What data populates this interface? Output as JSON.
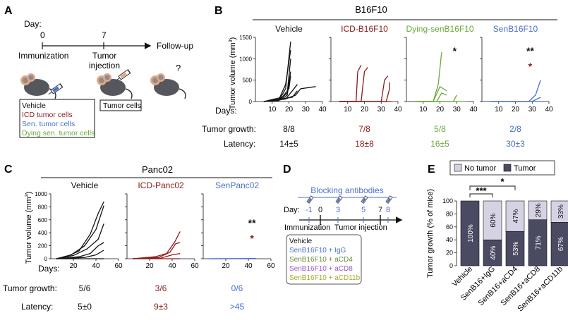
{
  "panels": {
    "A": {
      "letter": "A",
      "day_label": "Day:",
      "ticks": [
        "0",
        "7"
      ],
      "follow_up": "Follow-up",
      "immunization": "Immunization",
      "tumor_injection_1": "Tumor",
      "tumor_injection_2": "injection",
      "tumor_cells_box": "Tumor cells",
      "question": "?",
      "legend": [
        {
          "text": "Vehicle",
          "color": "#111111"
        },
        {
          "text": "ICD tumor cells",
          "color": "#8b1a1a"
        },
        {
          "text": "Sen. tumor cells",
          "color": "#4a6fd0"
        },
        {
          "text": "Dying sen. tumor cells",
          "color": "#6aaa3a"
        }
      ]
    },
    "B": {
      "letter": "B",
      "header": "B16F10",
      "ylabel": "Tumor volume (mm",
      "ylabel_sup": "3",
      "ylabel_end": ")",
      "days_label": "Days:",
      "growth_label": "Tumor growth:",
      "latency_label": "Latency:",
      "groups": [
        {
          "title": "Vehicle",
          "color": "#111111",
          "growth": "8/8",
          "latency": "14±5",
          "stars": []
        },
        {
          "title": "ICD-B16F10",
          "color": "#8b1a1a",
          "growth": "7/8",
          "latency": "18±8",
          "stars": []
        },
        {
          "title": "Dying-senB16F10",
          "color": "#6aaa3a",
          "growth": "5/8",
          "latency": "16±5",
          "stars": [
            {
              "text": "*",
              "color": "#111111"
            }
          ]
        },
        {
          "title": "SenB16F10",
          "color": "#4a6fd0",
          "growth": "2/8",
          "latency": "30±3",
          "stars": [
            {
              "text": "**",
              "color": "#111111"
            },
            {
              "text": "*",
              "color": "#8b1a1a"
            }
          ]
        }
      ]
    },
    "C": {
      "letter": "C",
      "header": "Panc02",
      "ylabel": "Tumor volume (mm",
      "ylabel_sup": "3",
      "ylabel_end": ")",
      "days_label": "Days:",
      "growth_label": "Tumor growth:",
      "latency_label": "Latency:",
      "groups": [
        {
          "title": "Vehicle",
          "color": "#111111",
          "growth": "5/6",
          "latency": "5±0",
          "stars": []
        },
        {
          "title": "ICD-Panc02",
          "color": "#8b1a1a",
          "growth": "3/6",
          "latency": "9±3",
          "stars": []
        },
        {
          "title": "SenPanc02",
          "color": "#4a6fd0",
          "growth": "0/6",
          "latency": ">45",
          "stars": [
            {
              "text": "**",
              "color": "#111111"
            },
            {
              "text": "*",
              "color": "#8b1a1a"
            }
          ]
        }
      ]
    },
    "D": {
      "letter": "D",
      "header": "Blocking antibodies",
      "day_label": "Day:",
      "ticks": [
        {
          "text": "-1",
          "color": "#4a6fd0"
        },
        {
          "text": "0",
          "color": "#111111"
        },
        {
          "text": "3",
          "color": "#4a6fd0"
        },
        {
          "text": "5",
          "color": "#4a6fd0"
        },
        {
          "text": "7",
          "color": "#111111"
        },
        {
          "text": "8",
          "color": "#4a6fd0"
        }
      ],
      "immunization": "Immunization",
      "tumor_injection": "Tumor injection",
      "legend": [
        {
          "text": "Vehicle",
          "color": "#111111"
        },
        {
          "text": "SenB16F10 + IgG",
          "color": "#4a6fd0"
        },
        {
          "text": "SenB16F10 + aCD4",
          "color": "#6a8a3a"
        },
        {
          "text": "SenB16F10 + aCD8",
          "color": "#9a5ac8"
        },
        {
          "text": "SenB16F10 + aCD11b",
          "color": "#a8a82a"
        }
      ]
    },
    "E": {
      "letter": "E",
      "significance": [
        "***",
        "*"
      ]
    }
  },
  "chart_data": [
    {
      "type": "line",
      "panel": "B",
      "xlabel": "Days:",
      "ylabel": "Tumor volume (mm3)",
      "xticks": [
        10,
        20,
        30,
        40
      ],
      "yticks": [
        0,
        500,
        1000,
        1500
      ],
      "xlim": [
        0,
        40
      ],
      "ylim": [
        0,
        1500
      ],
      "subplots": [
        {
          "title": "Vehicle",
          "color": "#111111",
          "lines": [
            [
              [
                5,
                0
              ],
              [
                14,
                20
              ],
              [
                18,
                300
              ],
              [
                21,
                1400
              ]
            ],
            [
              [
                5,
                0
              ],
              [
                14,
                50
              ],
              [
                18,
                400
              ],
              [
                21,
                1200
              ]
            ],
            [
              [
                5,
                0
              ],
              [
                14,
                30
              ],
              [
                19,
                200
              ],
              [
                21,
                1000
              ]
            ],
            [
              [
                5,
                0
              ],
              [
                15,
                40
              ],
              [
                19,
                150
              ],
              [
                21,
                700
              ]
            ],
            [
              [
                5,
                0
              ],
              [
                16,
                100
              ],
              [
                20,
                300
              ],
              [
                21,
                600
              ]
            ],
            [
              [
                5,
                0
              ],
              [
                18,
                60
              ],
              [
                22,
                250
              ],
              [
                25,
                400
              ]
            ],
            [
              [
                5,
                0
              ],
              [
                18,
                60
              ],
              [
                24,
                150
              ],
              [
                27,
                300
              ],
              [
                36,
                350
              ]
            ],
            [
              [
                5,
                0
              ],
              [
                22,
                100
              ],
              [
                25,
                250
              ]
            ]
          ]
        },
        {
          "title": "ICD-B16F10",
          "color": "#8b1a1a",
          "lines": [
            [
              [
                5,
                0
              ],
              [
                15,
                0
              ],
              [
                16,
                700
              ],
              [
                18,
                850
              ]
            ],
            [
              [
                5,
                0
              ],
              [
                18,
                0
              ],
              [
                20,
                700
              ],
              [
                22,
                800
              ]
            ],
            [
              [
                5,
                0
              ],
              [
                30,
                0
              ],
              [
                32,
                500
              ],
              [
                34,
                600
              ]
            ],
            [
              [
                5,
                0
              ],
              [
                33,
                0
              ],
              [
                35,
                300
              ],
              [
                35,
                450
              ]
            ],
            [
              [
                5,
                0
              ],
              [
                36,
                0
              ]
            ]
          ]
        },
        {
          "title": "Dying-senB16F10",
          "color": "#6aaa3a",
          "lines": [
            [
              [
                5,
                0
              ],
              [
                16,
                0
              ],
              [
                19,
                400
              ],
              [
                21,
                1150
              ]
            ],
            [
              [
                5,
                0
              ],
              [
                16,
                0
              ],
              [
                20,
                350
              ],
              [
                24,
                250
              ]
            ],
            [
              [
                5,
                0
              ],
              [
                18,
                0
              ],
              [
                21,
                200
              ],
              [
                24,
                150
              ]
            ],
            [
              [
                5,
                0
              ],
              [
                28,
                0
              ],
              [
                30,
                150
              ]
            ],
            [
              [
                5,
                0
              ],
              [
                36,
                0
              ]
            ]
          ]
        },
        {
          "title": "SenB16F10",
          "color": "#4a6fd0",
          "lines": [
            [
              [
                5,
                0
              ],
              [
                28,
                0
              ],
              [
                32,
                150
              ],
              [
                35,
                500
              ]
            ],
            [
              [
                5,
                0
              ],
              [
                30,
                0
              ],
              [
                35,
                100
              ]
            ],
            [
              [
                5,
                0
              ],
              [
                36,
                0
              ]
            ]
          ]
        }
      ]
    },
    {
      "type": "line",
      "panel": "C",
      "xlabel": "Days:",
      "ylabel": "Tumor volume (mm3)",
      "xticks": [
        20,
        40,
        60
      ],
      "yticks": [
        0,
        200,
        400,
        600,
        800,
        1000
      ],
      "xlim": [
        0,
        60
      ],
      "ylim": [
        0,
        1000
      ],
      "subplots": [
        {
          "title": "Vehicle",
          "color": "#111111",
          "lines": [
            [
              [
                5,
                0
              ],
              [
                15,
                40
              ],
              [
                25,
                120
              ],
              [
                35,
                380
              ],
              [
                42,
                700
              ],
              [
                47,
                880
              ]
            ],
            [
              [
                5,
                0
              ],
              [
                18,
                60
              ],
              [
                30,
                200
              ],
              [
                40,
                450
              ],
              [
                47,
                820
              ]
            ],
            [
              [
                5,
                0
              ],
              [
                20,
                50
              ],
              [
                32,
                150
              ],
              [
                42,
                300
              ],
              [
                47,
                540
              ]
            ],
            [
              [
                5,
                0
              ],
              [
                25,
                30
              ],
              [
                35,
                80
              ],
              [
                42,
                200
              ],
              [
                47,
                250
              ]
            ],
            [
              [
                5,
                0
              ],
              [
                30,
                20
              ],
              [
                40,
                60
              ],
              [
                47,
                130
              ]
            ],
            [
              [
                5,
                0
              ],
              [
                47,
                0
              ]
            ]
          ]
        },
        {
          "title": "ICD-Panc02",
          "color": "#8b1a1a",
          "lines": [
            [
              [
                5,
                0
              ],
              [
                25,
                30
              ],
              [
                35,
                80
              ],
              [
                42,
                250
              ],
              [
                47,
                420
              ]
            ],
            [
              [
                5,
                0
              ],
              [
                28,
                20
              ],
              [
                38,
                100
              ],
              [
                43,
                230
              ],
              [
                47,
                250
              ]
            ],
            [
              [
                5,
                0
              ],
              [
                30,
                10
              ],
              [
                40,
                60
              ],
              [
                47,
                80
              ]
            ],
            [
              [
                5,
                0
              ],
              [
                47,
                0
              ]
            ]
          ]
        },
        {
          "title": "SenPanc02",
          "color": "#4a6fd0",
          "lines": [
            [
              [
                5,
                0
              ],
              [
                47,
                0
              ]
            ],
            [
              [
                5,
                0
              ],
              [
                47,
                3
              ]
            ]
          ]
        }
      ]
    },
    {
      "type": "bar",
      "panel": "E",
      "stacked": true,
      "ylabel": "Tumor growth (% of mice)",
      "yticks": [
        0,
        20,
        40,
        60,
        80,
        100
      ],
      "ylim": [
        0,
        100
      ],
      "categories": [
        "Vehicle",
        "SenB16+IgG",
        "SenB16+aCD4",
        "SenB16+aCD8",
        "SenB16+aCD11b"
      ],
      "legend": [
        {
          "name": "No tumor",
          "color": "#d5d3e3"
        },
        {
          "name": "Tumor",
          "color": "#4a4b62"
        }
      ],
      "series": [
        {
          "name": "Tumor",
          "values": [
            100,
            40,
            53,
            71,
            67
          ],
          "labels": [
            "100%",
            "40%",
            "53%",
            "71%",
            "67%"
          ]
        },
        {
          "name": "No tumor",
          "values": [
            0,
            60,
            47,
            29,
            33
          ],
          "labels": [
            "",
            "60%",
            "47%",
            "29%",
            "33%"
          ]
        }
      ]
    }
  ]
}
